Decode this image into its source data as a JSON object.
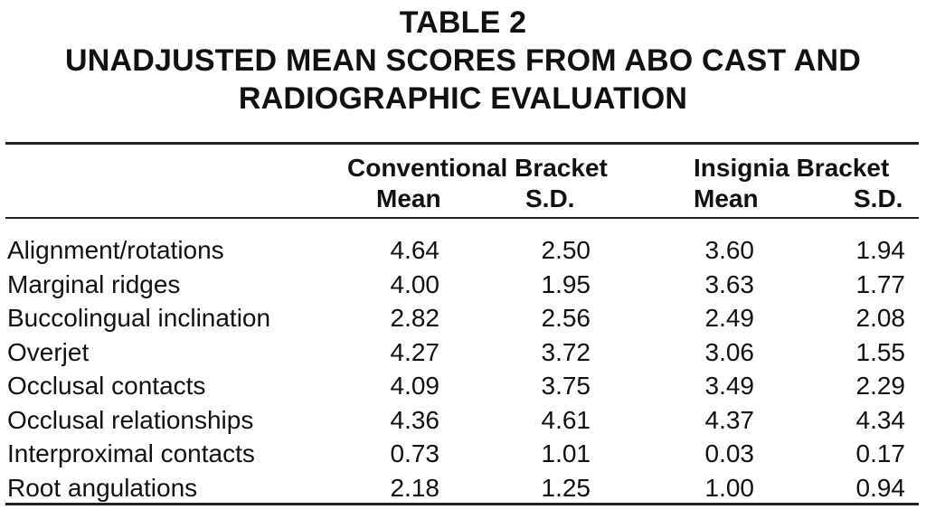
{
  "table": {
    "title_lines": [
      "TABLE 2",
      "UNADJUSTED MEAN SCORES FROM ABO CAST AND",
      "RADIOGRAPHIC EVALUATION"
    ],
    "groups": [
      "Conventional Bracket",
      "Insignia Bracket"
    ],
    "subheaders": [
      "Mean",
      "S.D.",
      "Mean",
      "S.D."
    ],
    "rows": [
      {
        "label": "Alignment/rotations",
        "values": [
          "4.64",
          "2.50",
          "3.60",
          "1.94"
        ]
      },
      {
        "label": "Marginal ridges",
        "values": [
          "4.00",
          "1.95",
          "3.63",
          "1.77"
        ]
      },
      {
        "label": "Buccolingual inclination",
        "values": [
          "2.82",
          "2.56",
          "2.49",
          "2.08"
        ]
      },
      {
        "label": "Overjet",
        "values": [
          "4.27",
          "3.72",
          "3.06",
          "1.55"
        ]
      },
      {
        "label": "Occlusal contacts",
        "values": [
          "4.09",
          "3.75",
          "3.49",
          "2.29"
        ]
      },
      {
        "label": "Occlusal relationships",
        "values": [
          "4.36",
          "4.61",
          "4.37",
          "4.34"
        ]
      },
      {
        "label": "Interproximal contacts",
        "values": [
          "0.73",
          "1.01",
          "0.03",
          "0.17"
        ]
      },
      {
        "label": "Root angulations",
        "values": [
          "2.18",
          "1.25",
          "1.00",
          "0.94"
        ]
      }
    ]
  }
}
